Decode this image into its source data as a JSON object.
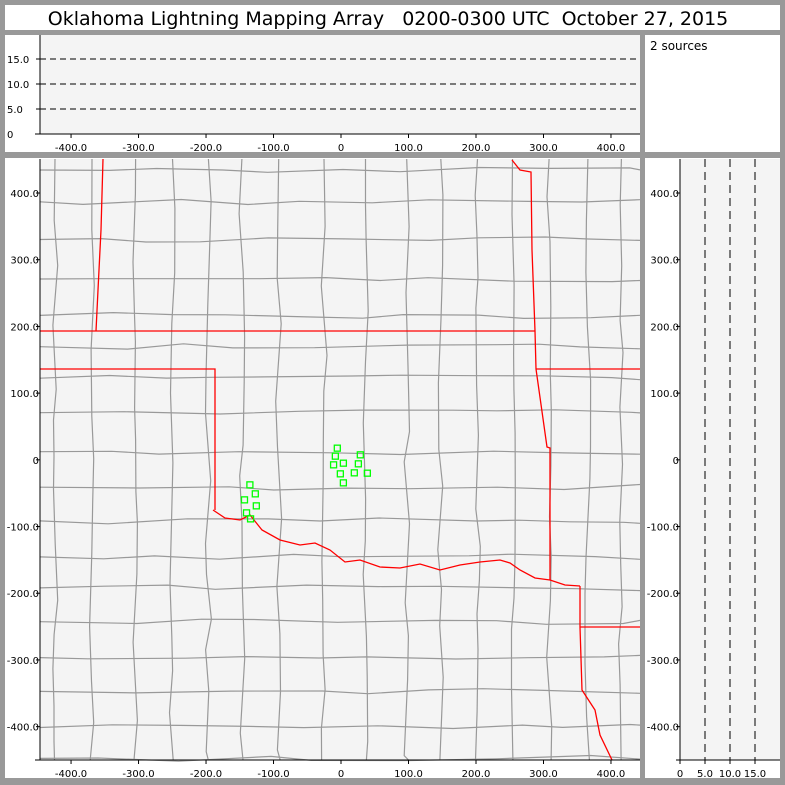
{
  "title": "Oklahoma Lightning Mapping Array   0200-0300 UTC  October 27, 2015",
  "source_count_label": "2 sources",
  "colors": {
    "background": "#999999",
    "panel": "#f4f4f4",
    "state_border": "#ff0000",
    "county_border": "#999999",
    "source_marker": "#00ff00"
  },
  "chart_data": [
    {
      "type": "scatter",
      "panel": "altitude-vs-east-west",
      "xlim": [
        -446,
        443
      ],
      "ylim": [
        0,
        19.8
      ],
      "xticks": [
        "-400.0",
        "-300.0",
        "-200.0",
        "-100.0",
        "0",
        "100.0",
        "200.0",
        "300.0",
        "400.0"
      ],
      "xtick_values": [
        -400,
        -300,
        -200,
        -100,
        0,
        100,
        200,
        300,
        400
      ],
      "yticks": [
        "0",
        "5.0",
        "10.0",
        "15.0"
      ],
      "ytick_values": [
        0,
        5,
        10,
        15
      ],
      "dashed_lines": [
        5,
        10,
        15
      ],
      "points": []
    },
    {
      "type": "scatter",
      "panel": "plan-view-map",
      "xlim": [
        -446,
        443
      ],
      "ylim": [
        -450,
        451
      ],
      "xticks": [
        "-400.0",
        "-300.0",
        "-200.0",
        "-100.0",
        "0",
        "100.0",
        "200.0",
        "300.0",
        "400.0"
      ],
      "xtick_values": [
        -400,
        -300,
        -200,
        -100,
        0,
        100,
        200,
        300,
        400
      ],
      "yticks": [
        "400.0",
        "300.0",
        "200.0",
        "100.0",
        "0",
        "-100.0",
        "-200.0",
        "-300.0",
        "-400.0"
      ],
      "ytick_values": [
        400,
        300,
        200,
        100,
        0,
        -100,
        -200,
        -300,
        -400
      ],
      "points": [
        {
          "x": -5.5,
          "y": 17.5
        },
        {
          "x": -8.4,
          "y": 5.5
        },
        {
          "x": -11,
          "y": -7.5
        },
        {
          "x": 3.5,
          "y": -5
        },
        {
          "x": -1,
          "y": -21
        },
        {
          "x": 3.5,
          "y": -34.5
        },
        {
          "x": 28.6,
          "y": 7.5
        },
        {
          "x": 25.7,
          "y": -6
        },
        {
          "x": 19.7,
          "y": -19.5
        },
        {
          "x": 39,
          "y": -20
        },
        {
          "x": -135,
          "y": -37.5
        },
        {
          "x": -127,
          "y": -51
        },
        {
          "x": -143,
          "y": -60
        },
        {
          "x": -125.5,
          "y": -69
        },
        {
          "x": -140,
          "y": -79.5
        },
        {
          "x": -134,
          "y": -88.5
        }
      ]
    },
    {
      "type": "scatter",
      "panel": "altitude-vs-north-south",
      "xlim": [
        0,
        20
      ],
      "ylim": [
        -450,
        451
      ],
      "xticks": [
        "0",
        "5.0",
        "10.0",
        "15.0"
      ],
      "xtick_values": [
        0,
        5,
        10,
        15
      ],
      "yticks": [
        "400.0",
        "300.0",
        "200.0",
        "100.0",
        "0",
        "-100.0",
        "-200.0",
        "-300.0",
        "-400.0"
      ],
      "ytick_values": [
        400,
        300,
        200,
        100,
        0,
        -100,
        -200,
        -300,
        -400
      ],
      "dashed_lines": [
        5,
        10,
        15
      ],
      "points": []
    }
  ]
}
